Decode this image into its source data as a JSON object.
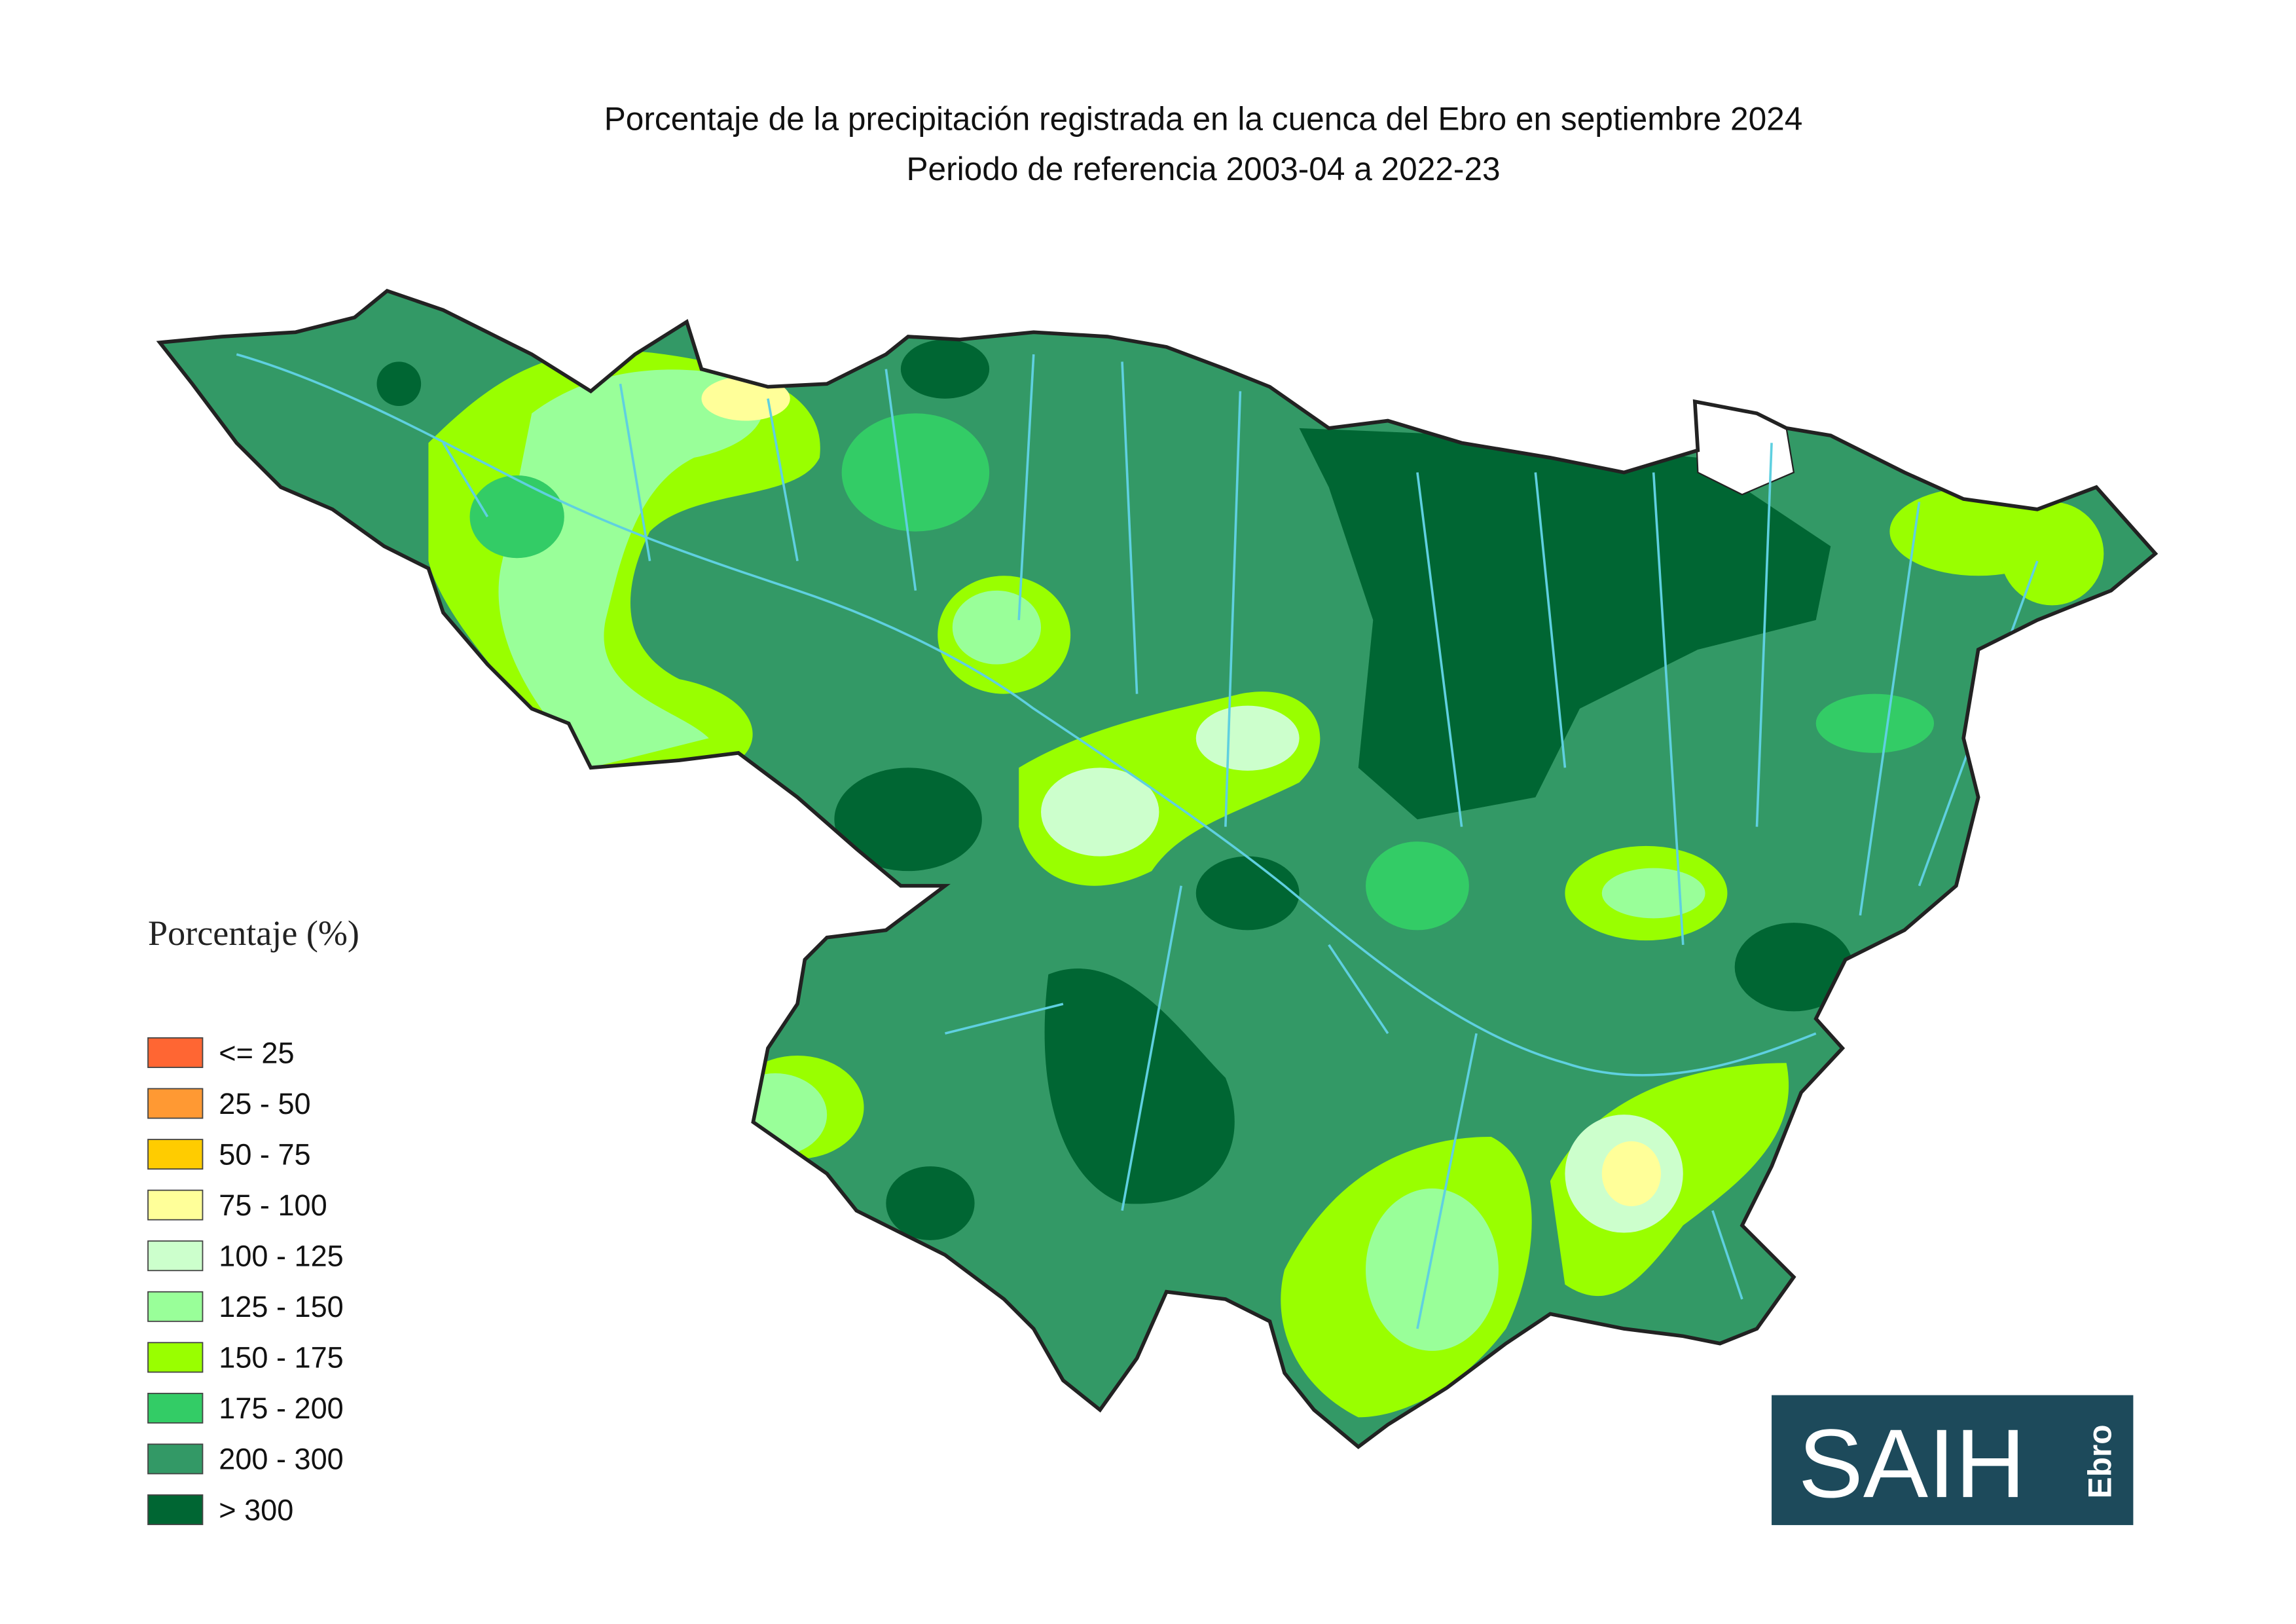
{
  "header": {
    "title": "Porcentaje de la precipitación registrada en la cuenca del Ebro en septiembre 2024",
    "subtitle": "Periodo de referencia 2003-04 a 2022-23"
  },
  "legend": {
    "title": "Porcentaje (%)",
    "items": [
      {
        "label": "<= 25",
        "color": "#ff6633"
      },
      {
        "label": "25 - 50",
        "color": "#ff9933"
      },
      {
        "label": "50 - 75",
        "color": "#ffcc00"
      },
      {
        "label": "75 - 100",
        "color": "#ffff99"
      },
      {
        "label": "100 - 125",
        "color": "#ccffcc"
      },
      {
        "label": "125 - 150",
        "color": "#99ff99"
      },
      {
        "label": "150 - 175",
        "color": "#99ff00"
      },
      {
        "label": "175 - 200",
        "color": "#33cc66"
      },
      {
        "label": "200 - 300",
        "color": "#339966"
      },
      {
        "label": "> 300",
        "color": "#006633"
      }
    ]
  },
  "logo": {
    "main": "SAIH",
    "side": "Ebro"
  }
}
